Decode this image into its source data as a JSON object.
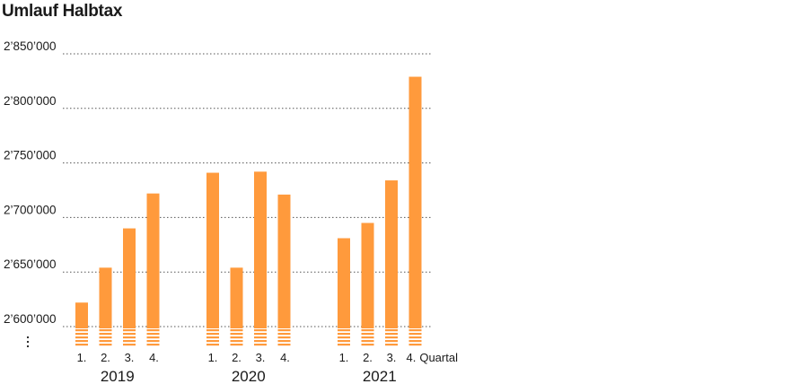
{
  "chart_data": {
    "type": "bar",
    "title": "Umlauf Halbtax",
    "y_ticks": [
      "2’850’000",
      "2’800’000",
      "2’750’000",
      "2’700’000",
      "2’650’000",
      "2’600’000"
    ],
    "y_tick_values": [
      2850000,
      2800000,
      2750000,
      2700000,
      2650000,
      2600000
    ],
    "ylim": [
      2600000,
      2850000
    ],
    "axis_break": true,
    "bar_color": "#ff9a3c",
    "quarter_unit_label": "Quartal",
    "groups": [
      {
        "year": "2019",
        "quarters": [
          "1.",
          "2.",
          "3.",
          "4."
        ],
        "values": [
          2622000,
          2654000,
          2690000,
          2722000
        ]
      },
      {
        "year": "2020",
        "quarters": [
          "1.",
          "2.",
          "3.",
          "4."
        ],
        "values": [
          2741000,
          2654000,
          2742000,
          2721000
        ]
      },
      {
        "year": "2021",
        "quarters": [
          "1.",
          "2.",
          "3.",
          "4."
        ],
        "values": [
          2681000,
          2695000,
          2734000,
          2829000
        ]
      }
    ]
  }
}
